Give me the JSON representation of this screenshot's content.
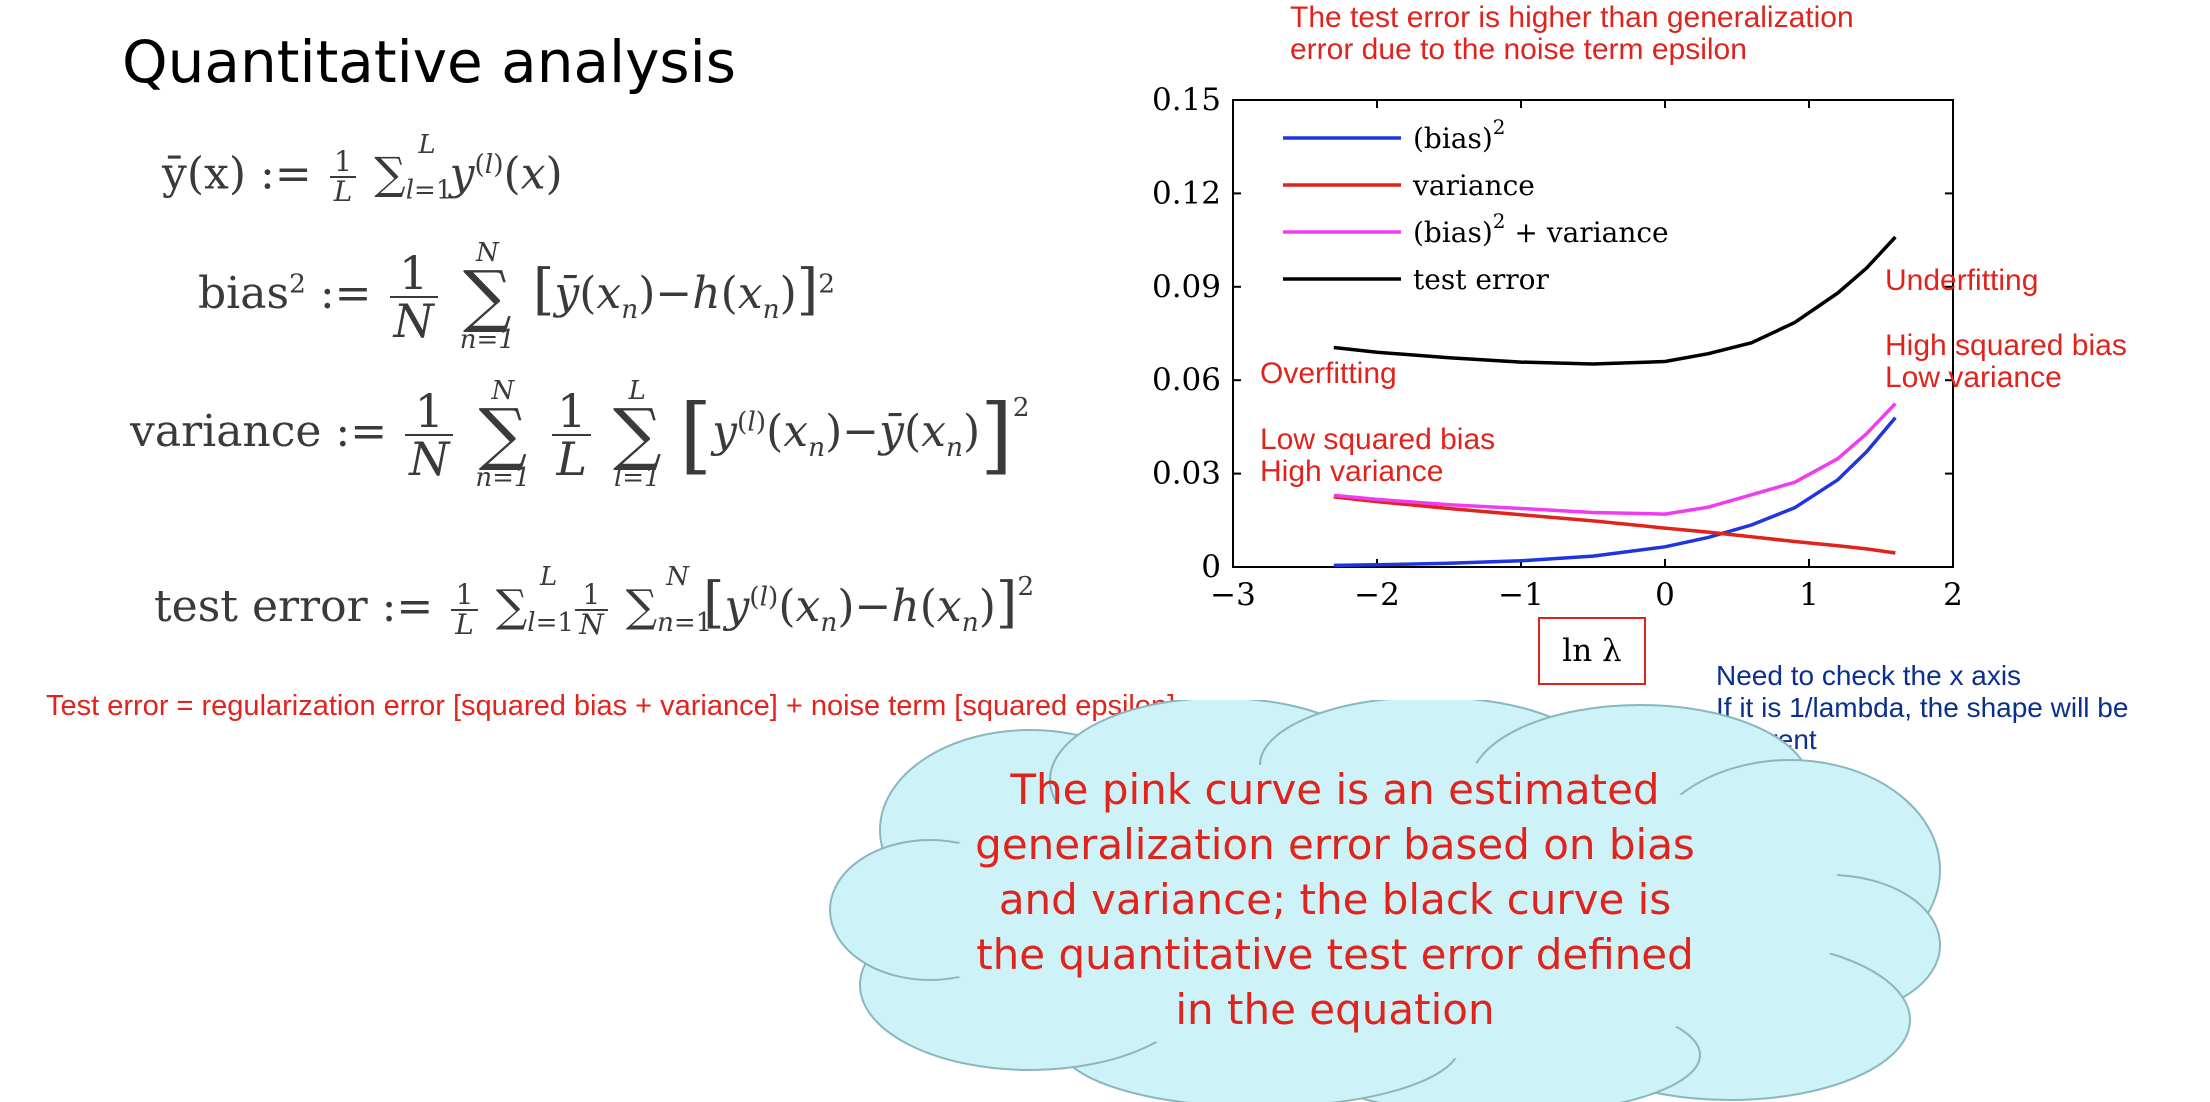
{
  "slide": {
    "title": "Quantitative analysis",
    "equations": {
      "ybar_lhs": "ȳ(x) :=",
      "bias_lhs": "bias",
      "variance_lhs": "variance :=",
      "test_error_lhs": "test error :="
    },
    "decomposition_note": "Test error = regularization error [squared bias + variance] + noise term [squared epsilon]",
    "top_note_line1": "The test error is higher than generalization",
    "top_note_line2": "error due to the noise term epsilon",
    "overfitting": "Overfitting",
    "low_bias_line1": "Low squared bias",
    "low_bias_line2": "High variance",
    "underfitting": "Underfitting",
    "high_bias_line1": "High squared bias",
    "high_bias_line2": "Low variance",
    "xaxis_note_line1": "Need to check the x axis",
    "xaxis_note_line2": "If it is 1/lambda, the shape will be",
    "xaxis_note_line3": "different",
    "cloud_line1": "The pink curve is an estimated",
    "cloud_line2": "generalization error based on bias",
    "cloud_line3": "and variance; the black curve is",
    "cloud_line4": "the quantitative test error defined",
    "cloud_line5": "in the equation",
    "colors": {
      "annotation_red": "#e0231c",
      "annotation_blue": "#0b2f8f",
      "cloud_fill": "#cdf3f8"
    }
  },
  "chart_data": {
    "type": "line",
    "title": "",
    "xlabel": "ln λ",
    "ylabel": "",
    "xlim": [
      -3,
      2
    ],
    "ylim": [
      0,
      0.15
    ],
    "xticks": [
      "−3",
      "−2",
      "−1",
      "0",
      "1",
      "2"
    ],
    "xtick_values": [
      -3,
      -2,
      -1,
      0,
      1,
      2
    ],
    "yticks": [
      "0",
      "0.03",
      "0.06",
      "0.09",
      "0.12",
      "0.15"
    ],
    "ytick_values": [
      0,
      0.03,
      0.06,
      0.09,
      0.12,
      0.15
    ],
    "legend_position": "top-left",
    "series": [
      {
        "name": "(bias)",
        "legend_sup": "2",
        "color": "#1f35e0",
        "x": [
          -2.3,
          -2.0,
          -1.5,
          -1.0,
          -0.5,
          0.0,
          0.3,
          0.6,
          0.9,
          1.2,
          1.4,
          1.6
        ],
        "y": [
          0.0005,
          0.0007,
          0.0012,
          0.002,
          0.0035,
          0.0065,
          0.0095,
          0.0135,
          0.019,
          0.028,
          0.037,
          0.048
        ]
      },
      {
        "name": "variance",
        "legend_sup": "",
        "color": "#e0231c",
        "x": [
          -2.3,
          -2.0,
          -1.5,
          -1.0,
          -0.5,
          0.0,
          0.3,
          0.6,
          0.9,
          1.2,
          1.4,
          1.6
        ],
        "y": [
          0.0225,
          0.021,
          0.0188,
          0.0168,
          0.0148,
          0.0125,
          0.0112,
          0.0097,
          0.0082,
          0.0068,
          0.0058,
          0.0045
        ]
      },
      {
        "name": "(bias)",
        "legend_sup": "2",
        "legend_suffix": " + variance",
        "color": "#f03cf0",
        "x": [
          -2.3,
          -2.0,
          -1.5,
          -1.0,
          -0.5,
          0.0,
          0.3,
          0.6,
          0.9,
          1.2,
          1.4,
          1.6
        ],
        "y": [
          0.023,
          0.0217,
          0.02,
          0.0188,
          0.0175,
          0.017,
          0.0192,
          0.0232,
          0.0272,
          0.0348,
          0.0428,
          0.0525
        ]
      },
      {
        "name": "test error",
        "legend_sup": "",
        "color": "#000000",
        "x": [
          -2.3,
          -2.0,
          -1.5,
          -1.0,
          -0.5,
          0.0,
          0.3,
          0.6,
          0.9,
          1.2,
          1.4,
          1.6
        ],
        "y": [
          0.0705,
          0.069,
          0.0672,
          0.0658,
          0.0652,
          0.066,
          0.0685,
          0.072,
          0.0785,
          0.088,
          0.096,
          0.106
        ]
      }
    ]
  }
}
